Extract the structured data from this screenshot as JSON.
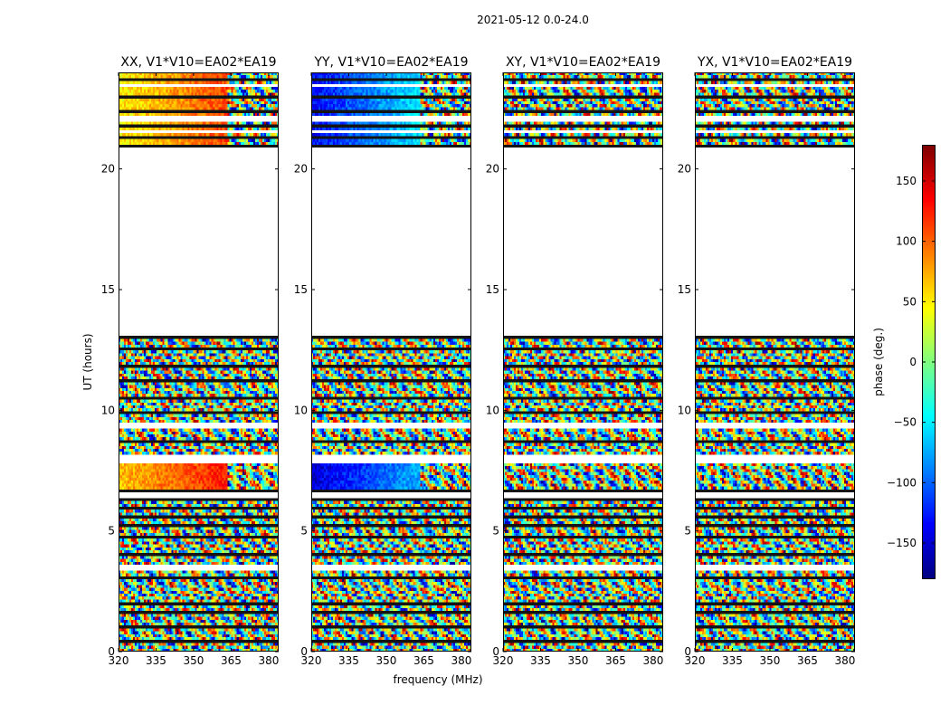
{
  "figure": {
    "suptitle": "2021-05-12 0.0-24.0",
    "xlabel": "frequency (MHz)",
    "ylabel": "UT (hours)"
  },
  "chart_data": {
    "type": "heatmap",
    "x_ticks": [
      "320",
      "335",
      "350",
      "365",
      "380"
    ],
    "x_tick_values": [
      320,
      335,
      350,
      365,
      380
    ],
    "xlim": [
      320,
      384
    ],
    "y_ticks": [
      "0",
      "5",
      "10",
      "15",
      "20"
    ],
    "y_tick_values": [
      0,
      5,
      10,
      15,
      20
    ],
    "ylim": [
      0,
      24
    ],
    "no_data_range_hours": [
      13.1,
      20.9
    ],
    "panels": [
      {
        "title": "XX, V1*V10=EA02*EA19",
        "pattern": "xx"
      },
      {
        "title": "YY, V1*V10=EA02*EA19",
        "pattern": "yy"
      },
      {
        "title": "XY, V1*V10=EA02*EA19",
        "pattern": "noise"
      },
      {
        "title": "YX, V1*V10=EA02*EA19",
        "pattern": "noise"
      }
    ],
    "colorbar": {
      "label": "phase (deg.)",
      "range": [
        -180,
        180
      ],
      "ticks": [
        "150",
        "100",
        "50",
        "0",
        "−50",
        "−100",
        "−150"
      ],
      "tick_values": [
        150,
        100,
        50,
        0,
        -50,
        -100,
        -150
      ],
      "colormap": "jet"
    }
  }
}
